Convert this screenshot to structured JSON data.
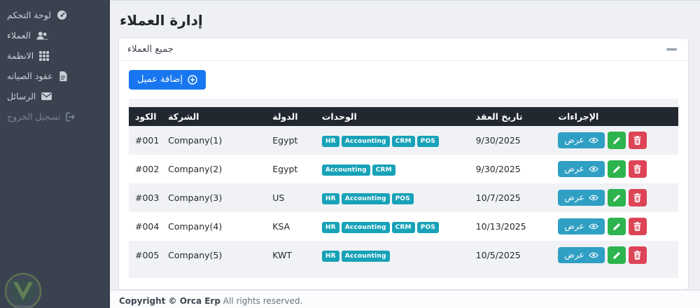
{
  "colors": {
    "sidebar_bg": "#3a4250",
    "primary_blue": "#1877f0",
    "badge_info": "#17a2b8",
    "view_button": "#2f9fc4",
    "edit_button": "#2db44e",
    "delete_button": "#dd4456",
    "table_header_bg": "#212830"
  },
  "sidebar": {
    "items": [
      {
        "label": "لوحة التحكم",
        "icon": "gauge-icon",
        "muted": false
      },
      {
        "label": "العملاء",
        "icon": "users-icon",
        "muted": false
      },
      {
        "label": "الانظمة",
        "icon": "grid-icon",
        "muted": false
      },
      {
        "label": "عقود الصيانه",
        "icon": "file-icon",
        "muted": false
      },
      {
        "label": "الرسائل",
        "icon": "envelope-icon",
        "muted": false
      },
      {
        "label": "تسجيل الخروج",
        "icon": "logout-icon",
        "muted": true
      }
    ]
  },
  "page": {
    "title": "إدارة العملاء"
  },
  "card": {
    "title": "جميع العملاء"
  },
  "toolbar": {
    "add_button_label": "إضافة عميل"
  },
  "table": {
    "headers": [
      "الكود",
      "الشركة",
      "الدولة",
      "الوحدات",
      "تاريخ العقد",
      "الإجراءات"
    ],
    "actions": {
      "view_label": "عرض"
    },
    "rows": [
      {
        "code": "#001",
        "company": "Company(1)",
        "country": "Egypt",
        "modules": [
          "HR",
          "Accounting",
          "CRM",
          "POS"
        ],
        "contract_date": "9/30/2025"
      },
      {
        "code": "#002",
        "company": "Company(2)",
        "country": "Egypt",
        "modules": [
          "Accounting",
          "CRM"
        ],
        "contract_date": "9/30/2025"
      },
      {
        "code": "#003",
        "company": "Company(3)",
        "country": "US",
        "modules": [
          "HR",
          "Accounting",
          "POS"
        ],
        "contract_date": "10/7/2025"
      },
      {
        "code": "#004",
        "company": "Company(4)",
        "country": "KSA",
        "modules": [
          "HR",
          "Accounting",
          "CRM",
          "POS"
        ],
        "contract_date": "10/13/2025"
      },
      {
        "code": "#005",
        "company": "Company(5)",
        "country": "KWT",
        "modules": [
          "HR",
          "Accounting"
        ],
        "contract_date": "10/5/2025"
      }
    ]
  },
  "footer": {
    "copyright_bold": "Copyright © Orca Erp",
    "copyright_rest": "All rights reserved."
  }
}
